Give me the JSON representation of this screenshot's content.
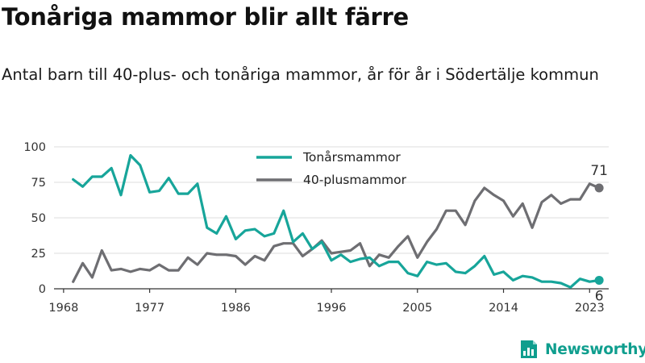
{
  "title": "Tonåriga mammor blir allt färre",
  "subtitle": "Antal barn till 40-plus- och tonåriga mammor, år för år i Södertälje kommun",
  "brand": {
    "name": "Newsworthy",
    "icon": "bar-chart-document-icon",
    "color": "#0f9e8e"
  },
  "chart_data": {
    "type": "line",
    "x_ticks": [
      "1968",
      "1977",
      "1986",
      "1996",
      "2005",
      "2014",
      "2023"
    ],
    "y_ticks": [
      "0",
      "25",
      "50",
      "75",
      "100"
    ],
    "ylim": [
      0,
      100
    ],
    "xlim": [
      1967,
      2025
    ],
    "grid": true,
    "legend_position": "top-center",
    "x": [
      1969,
      1970,
      1971,
      1972,
      1973,
      1974,
      1975,
      1976,
      1977,
      1978,
      1979,
      1980,
      1981,
      1982,
      1983,
      1984,
      1985,
      1986,
      1987,
      1988,
      1989,
      1990,
      1991,
      1992,
      1993,
      1994,
      1995,
      1996,
      1997,
      1998,
      1999,
      2000,
      2001,
      2002,
      2003,
      2004,
      2005,
      2006,
      2007,
      2008,
      2009,
      2010,
      2011,
      2012,
      2013,
      2014,
      2015,
      2016,
      2017,
      2018,
      2019,
      2020,
      2021,
      2022,
      2023,
      2024
    ],
    "series": [
      {
        "name": "Tonårsmammor",
        "color": "#17a59a",
        "end_label": "6",
        "values": [
          77,
          72,
          79,
          79,
          85,
          66,
          94,
          87,
          68,
          69,
          78,
          67,
          67,
          74,
          43,
          39,
          51,
          35,
          41,
          42,
          37,
          39,
          55,
          33,
          39,
          28,
          33,
          20,
          24,
          19,
          21,
          22,
          16,
          19,
          19,
          11,
          9,
          19,
          17,
          18,
          12,
          11,
          16,
          23,
          10,
          12,
          6,
          9,
          8,
          5,
          5,
          4,
          1,
          7,
          5,
          6
        ]
      },
      {
        "name": "40-plusmammor",
        "color": "#6e6e72",
        "end_label": "71",
        "values": [
          5,
          18,
          8,
          27,
          13,
          14,
          12,
          14,
          13,
          17,
          13,
          13,
          22,
          17,
          25,
          24,
          24,
          23,
          17,
          23,
          20,
          30,
          32,
          32,
          23,
          28,
          34,
          25,
          26,
          27,
          32,
          16,
          24,
          22,
          30,
          37,
          22,
          33,
          42,
          55,
          55,
          45,
          62,
          71,
          66,
          62,
          51,
          60,
          43,
          61,
          66,
          60,
          63,
          63,
          74,
          71
        ]
      }
    ]
  }
}
